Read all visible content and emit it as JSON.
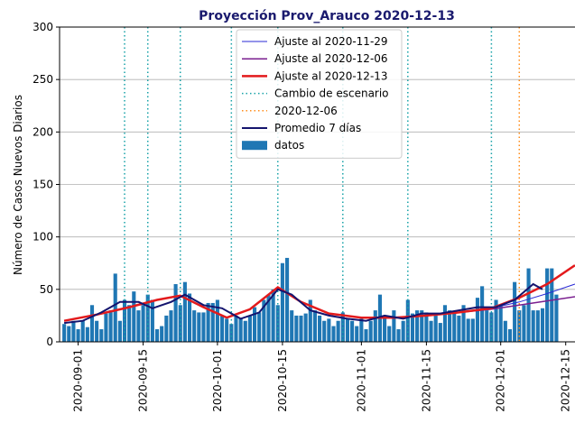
{
  "chart_data": {
    "type": "combo",
    "title": "Proyección Prov_Arauco 2020-12-13",
    "ylabel": "Número de Casos Nuevos Diarios",
    "ylim": [
      0,
      300
    ],
    "yticks": [
      0,
      50,
      100,
      150,
      200,
      250,
      300
    ],
    "xlim": [
      "2020-08-28",
      "2020-12-17"
    ],
    "xticks": [
      "2020-09-01",
      "2020-09-15",
      "2020-10-01",
      "2020-10-15",
      "2020-11-01",
      "2020-11-15",
      "2020-12-01",
      "2020-12-15"
    ],
    "grid": true,
    "legend": "upper center",
    "lines": [
      {
        "name": "Ajuste al 2020-11-29",
        "color": "#2a2ad6",
        "width": 1,
        "x": [
          "2020-08-29",
          "2020-09-05",
          "2020-09-12",
          "2020-09-18",
          "2020-09-23",
          "2020-09-28",
          "2020-10-03",
          "2020-10-08",
          "2020-10-14",
          "2020-10-19",
          "2020-10-25",
          "2020-11-01",
          "2020-11-08",
          "2020-11-15",
          "2020-11-22",
          "2020-11-29",
          "2020-12-05",
          "2020-12-11",
          "2020-12-17"
        ],
        "values": [
          20,
          26,
          33,
          40,
          44,
          33,
          23,
          31,
          52,
          38,
          27,
          23,
          23,
          25,
          28,
          32,
          38,
          46,
          55
        ]
      },
      {
        "name": "Ajuste al 2020-12-06",
        "color": "#7a1f8f",
        "width": 1.5,
        "x": [
          "2020-08-29",
          "2020-09-05",
          "2020-09-12",
          "2020-09-18",
          "2020-09-23",
          "2020-09-28",
          "2020-10-03",
          "2020-10-08",
          "2020-10-14",
          "2020-10-19",
          "2020-10-25",
          "2020-11-01",
          "2020-11-08",
          "2020-11-15",
          "2020-11-22",
          "2020-11-29",
          "2020-12-05",
          "2020-12-11",
          "2020-12-17"
        ],
        "values": [
          20,
          26,
          33,
          40,
          44,
          33,
          23,
          31,
          52,
          38,
          27,
          23,
          23,
          25,
          28,
          31,
          35,
          39,
          43
        ]
      },
      {
        "name": "Ajuste al 2020-12-13",
        "color": "#e31a1c",
        "width": 2.5,
        "x": [
          "2020-08-29",
          "2020-09-05",
          "2020-09-12",
          "2020-09-18",
          "2020-09-23",
          "2020-09-28",
          "2020-10-03",
          "2020-10-08",
          "2020-10-14",
          "2020-10-19",
          "2020-10-25",
          "2020-11-01",
          "2020-11-08",
          "2020-11-15",
          "2020-11-22",
          "2020-11-29",
          "2020-12-05",
          "2020-12-11",
          "2020-12-17"
        ],
        "values": [
          20,
          26,
          33,
          40,
          44,
          33,
          23,
          31,
          52,
          38,
          27,
          23,
          23,
          25,
          28,
          32,
          42,
          55,
          73
        ]
      },
      {
        "name": "Promedio 7 días",
        "color": "#14146e",
        "width": 2,
        "x": [
          "2020-08-29",
          "2020-09-02",
          "2020-09-06",
          "2020-09-10",
          "2020-09-14",
          "2020-09-17",
          "2020-09-21",
          "2020-09-24",
          "2020-09-28",
          "2020-10-02",
          "2020-10-06",
          "2020-10-10",
          "2020-10-14",
          "2020-10-17",
          "2020-10-21",
          "2020-10-25",
          "2020-10-29",
          "2020-11-02",
          "2020-11-06",
          "2020-11-10",
          "2020-11-14",
          "2020-11-18",
          "2020-11-22",
          "2020-11-26",
          "2020-11-30",
          "2020-12-04",
          "2020-12-08",
          "2020-12-10"
        ],
        "values": [
          18,
          20,
          28,
          38,
          38,
          32,
          38,
          45,
          35,
          32,
          22,
          28,
          50,
          45,
          30,
          25,
          22,
          20,
          25,
          22,
          27,
          27,
          30,
          33,
          33,
          40,
          55,
          50
        ]
      }
    ],
    "vlines": [
      {
        "name": "Cambio de escenario",
        "color": "#17a2a8",
        "x": [
          "2020-09-11",
          "2020-09-16",
          "2020-09-23",
          "2020-10-04",
          "2020-10-14",
          "2020-10-28",
          "2020-11-11",
          "2020-11-29"
        ]
      },
      {
        "name": "2020-12-06",
        "color": "#ff8c1a",
        "x": [
          "2020-12-05"
        ]
      }
    ],
    "bars": {
      "name": "datos",
      "color": "#1f77b4",
      "x": [
        "2020-08-29",
        "2020-08-30",
        "2020-08-31",
        "2020-09-01",
        "2020-09-02",
        "2020-09-03",
        "2020-09-04",
        "2020-09-05",
        "2020-09-06",
        "2020-09-07",
        "2020-09-08",
        "2020-09-09",
        "2020-09-10",
        "2020-09-11",
        "2020-09-12",
        "2020-09-13",
        "2020-09-14",
        "2020-09-15",
        "2020-09-16",
        "2020-09-17",
        "2020-09-18",
        "2020-09-19",
        "2020-09-20",
        "2020-09-21",
        "2020-09-22",
        "2020-09-23",
        "2020-09-24",
        "2020-09-25",
        "2020-09-26",
        "2020-09-27",
        "2020-09-28",
        "2020-09-29",
        "2020-09-30",
        "2020-10-01",
        "2020-10-02",
        "2020-10-03",
        "2020-10-04",
        "2020-10-05",
        "2020-10-06",
        "2020-10-07",
        "2020-10-08",
        "2020-10-09",
        "2020-10-10",
        "2020-10-11",
        "2020-10-12",
        "2020-10-13",
        "2020-10-14",
        "2020-10-15",
        "2020-10-16",
        "2020-10-17",
        "2020-10-18",
        "2020-10-19",
        "2020-10-20",
        "2020-10-21",
        "2020-10-22",
        "2020-10-23",
        "2020-10-24",
        "2020-10-25",
        "2020-10-26",
        "2020-10-27",
        "2020-10-28",
        "2020-10-29",
        "2020-10-30",
        "2020-10-31",
        "2020-11-01",
        "2020-11-02",
        "2020-11-03",
        "2020-11-04",
        "2020-11-05",
        "2020-11-06",
        "2020-11-07",
        "2020-11-08",
        "2020-11-09",
        "2020-11-10",
        "2020-11-11",
        "2020-11-12",
        "2020-11-13",
        "2020-11-14",
        "2020-11-15",
        "2020-11-16",
        "2020-11-17",
        "2020-11-18",
        "2020-11-19",
        "2020-11-20",
        "2020-11-21",
        "2020-11-22",
        "2020-11-23",
        "2020-11-24",
        "2020-11-25",
        "2020-11-26",
        "2020-11-27",
        "2020-11-28",
        "2020-11-29",
        "2020-11-30",
        "2020-12-01",
        "2020-12-02",
        "2020-12-03",
        "2020-12-04",
        "2020-12-05",
        "2020-12-06",
        "2020-12-07",
        "2020-12-08",
        "2020-12-09",
        "2020-12-10",
        "2020-12-11",
        "2020-12-12",
        "2020-12-13"
      ],
      "values": [
        17,
        15,
        20,
        12,
        20,
        14,
        35,
        20,
        12,
        27,
        30,
        65,
        20,
        40,
        35,
        48,
        30,
        35,
        45,
        40,
        12,
        15,
        25,
        30,
        55,
        35,
        57,
        46,
        30,
        28,
        28,
        37,
        37,
        40,
        25,
        22,
        17,
        25,
        22,
        20,
        25,
        33,
        28,
        40,
        45,
        50,
        35,
        75,
        80,
        30,
        25,
        25,
        27,
        40,
        30,
        25,
        20,
        22,
        15,
        20,
        28,
        22,
        20,
        15,
        22,
        12,
        20,
        30,
        45,
        22,
        15,
        30,
        12,
        20,
        40,
        27,
        30,
        30,
        28,
        20,
        25,
        18,
        35,
        30,
        28,
        25,
        35,
        22,
        22,
        42,
        53,
        30,
        28,
        40,
        35,
        20,
        12,
        57,
        30,
        35,
        70,
        30,
        30,
        32,
        70,
        70,
        45
      ]
    }
  }
}
